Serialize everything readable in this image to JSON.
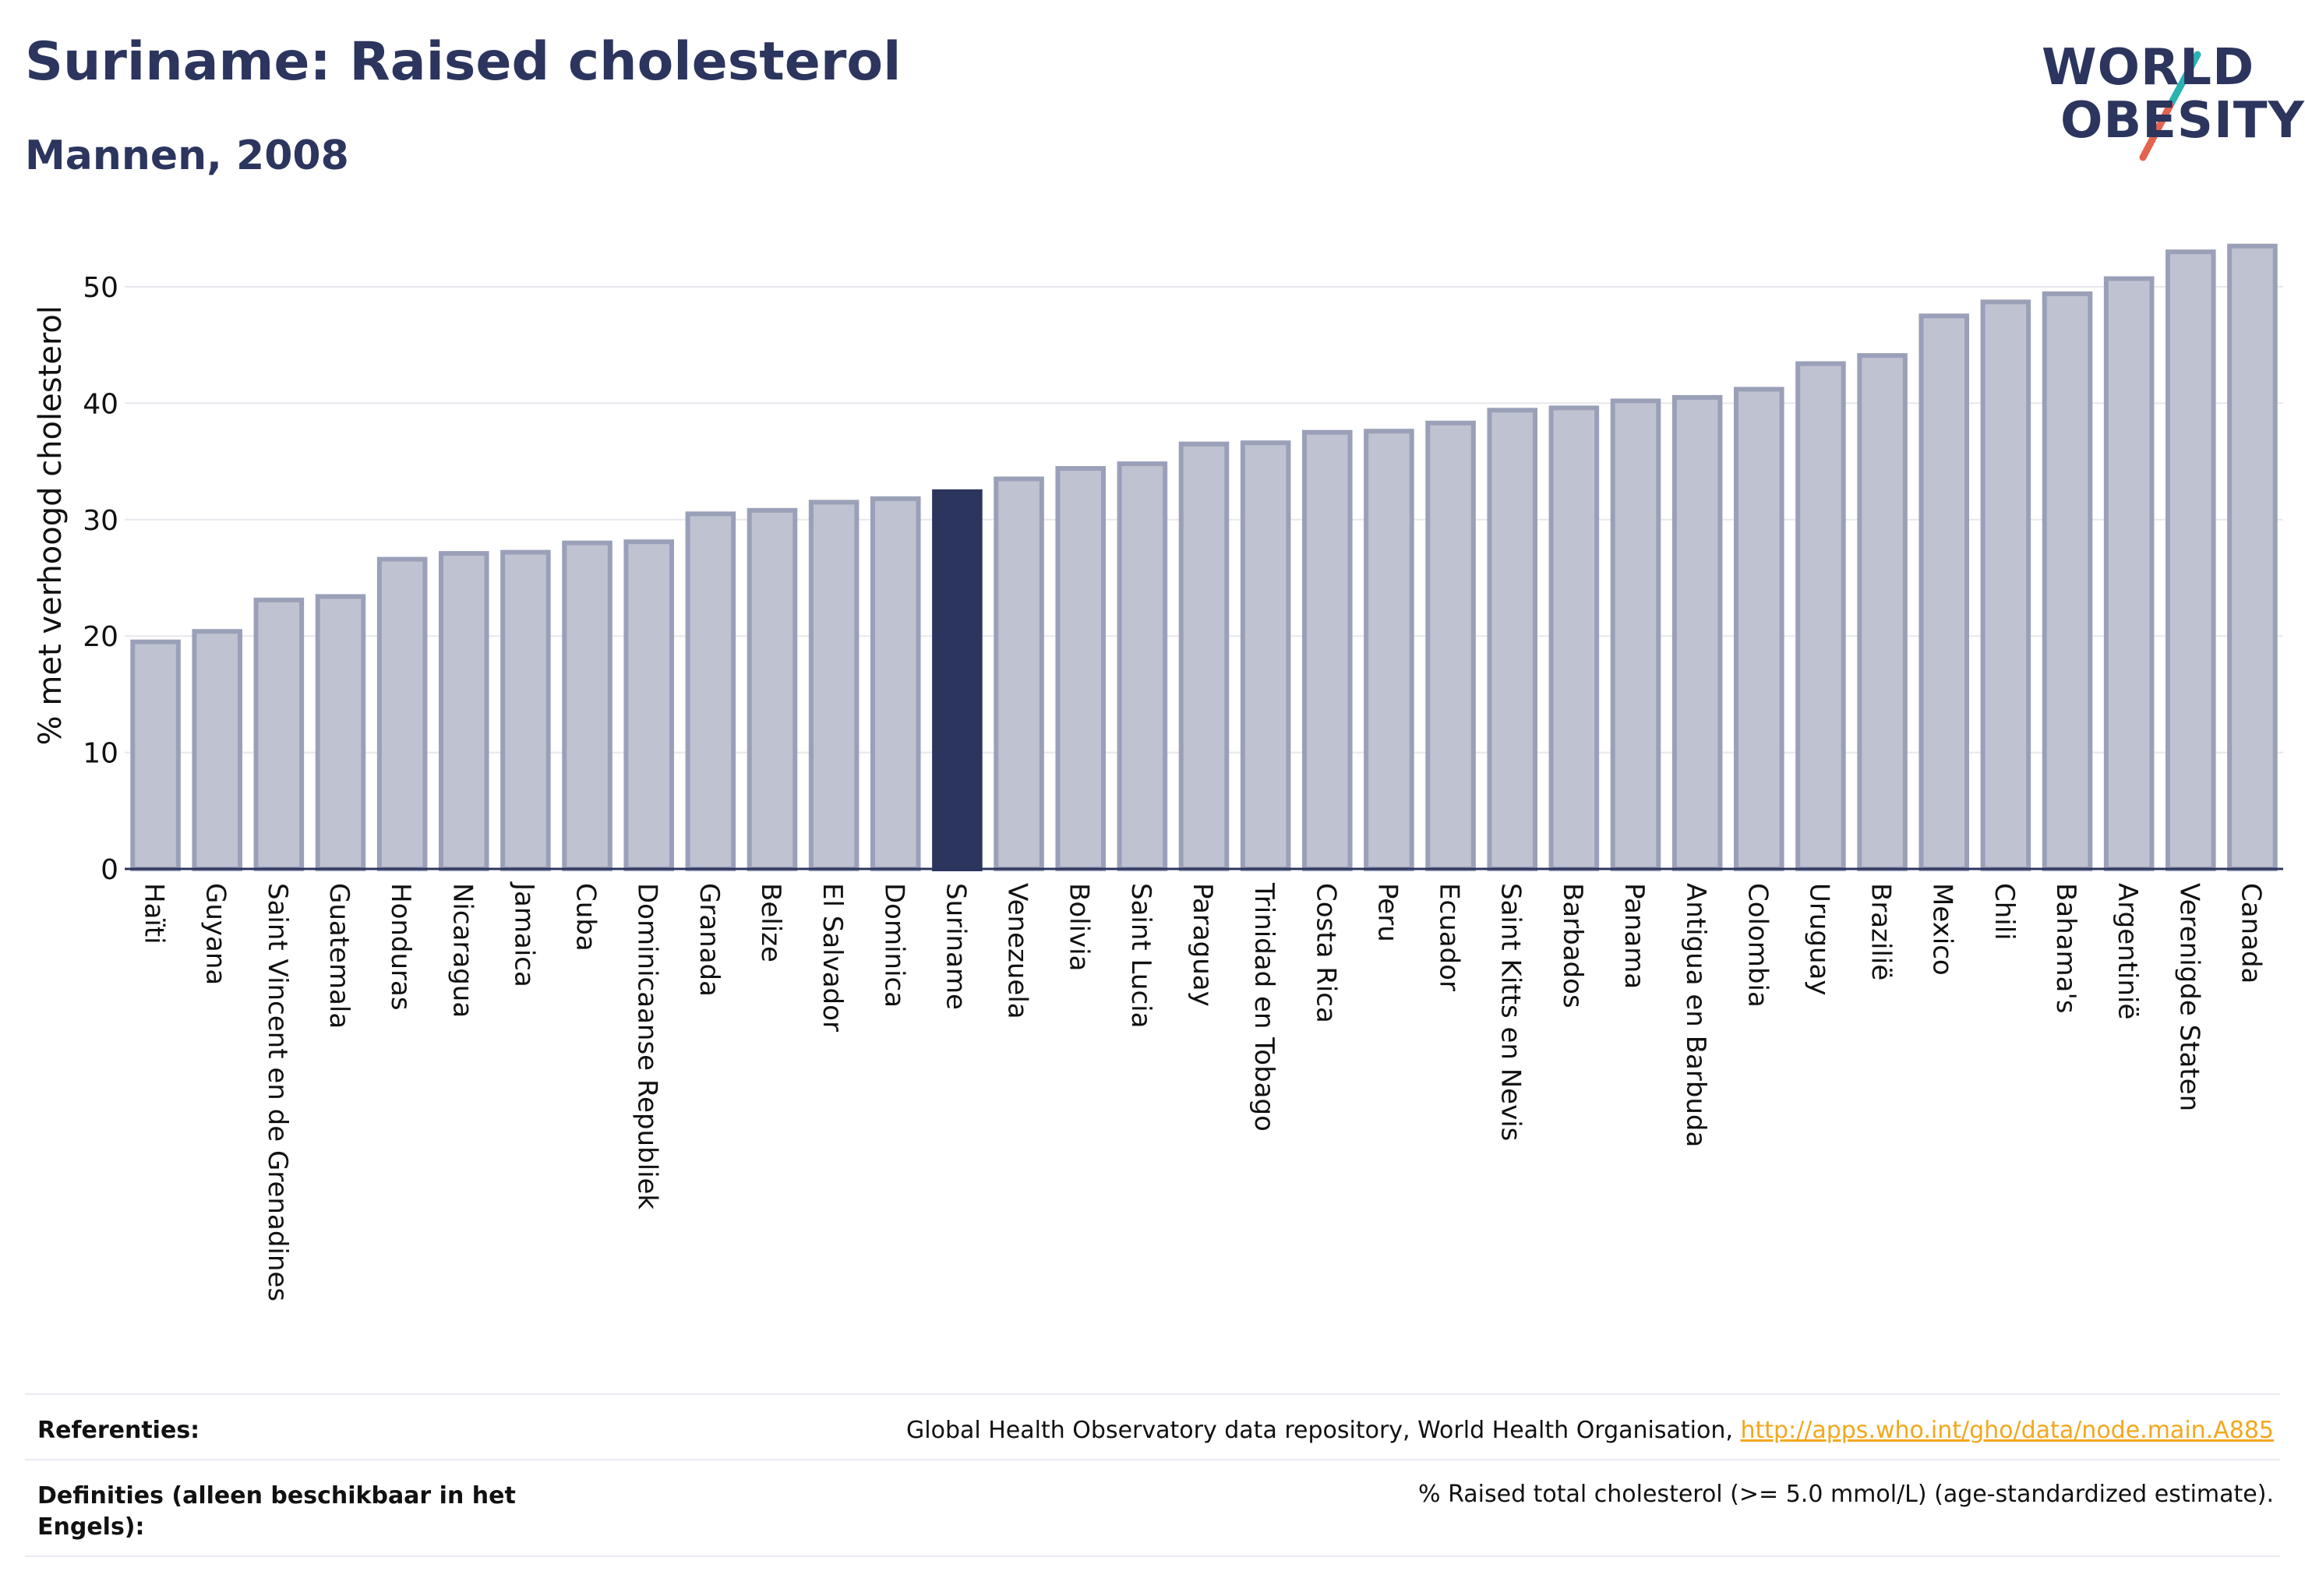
{
  "header": {
    "title": "Suriname: Raised cholesterol",
    "subtitle": "Mannen, 2008"
  },
  "logo": {
    "line1": "WORLD",
    "line2": "OBESITY",
    "colors": {
      "text": "#2b355e",
      "slash_top": "#2bb3b1",
      "slash_bottom": "#e4634f"
    }
  },
  "colors": {
    "bar_fill": "#bfc2d0",
    "bar_stroke": "#9aa0b8",
    "highlight": "#2b355e",
    "grid": "#e6e8ee"
  },
  "chart_data": {
    "type": "bar",
    "ylabel": "% met verhoogd cholesterol",
    "ylim": [
      0,
      55
    ],
    "yticks": [
      0,
      10,
      20,
      30,
      40,
      50
    ],
    "highlight": "Suriname",
    "grid": true,
    "categories": [
      "Haïti",
      "Guyana",
      "Saint Vincent en de Grenadines",
      "Guatemala",
      "Honduras",
      "Nicaragua",
      "Jamaica",
      "Cuba",
      "Dominicaanse Republiek",
      "Granada",
      "Belize",
      "El Salvador",
      "Dominica",
      "Suriname",
      "Venezuela",
      "Bolivia",
      "Saint Lucia",
      "Paraguay",
      "Trinidad en Tobago",
      "Costa Rica",
      "Peru",
      "Ecuador",
      "Saint Kitts en Nevis",
      "Barbados",
      "Panama",
      "Antigua en Barbuda",
      "Colombia",
      "Uruguay",
      "Brazilië",
      "Mexico",
      "Chili",
      "Bahama's",
      "Argentinië",
      "Verenigde Staten",
      "Canada"
    ],
    "values": [
      19.5,
      20.4,
      23.1,
      23.4,
      26.6,
      27.1,
      27.2,
      28.0,
      28.1,
      30.5,
      30.8,
      31.5,
      31.8,
      32.4,
      33.5,
      34.4,
      34.8,
      36.5,
      36.6,
      37.5,
      37.6,
      38.3,
      39.4,
      39.6,
      40.2,
      40.5,
      41.2,
      43.4,
      44.1,
      47.5,
      48.7,
      49.4,
      50.7,
      53.0,
      53.5
    ]
  },
  "footer": {
    "ref_label": "Referenties:",
    "ref_text": "Global Health Observatory data repository, World Health Organisation, ",
    "ref_link": "http://apps.who.int/gho/data/node.main.A885",
    "def_label": "Definities (alleen beschikbaar in het Engels):",
    "def_text": "% Raised total cholesterol (>= 5.0 mmol/L) (age-standardized estimate)."
  }
}
